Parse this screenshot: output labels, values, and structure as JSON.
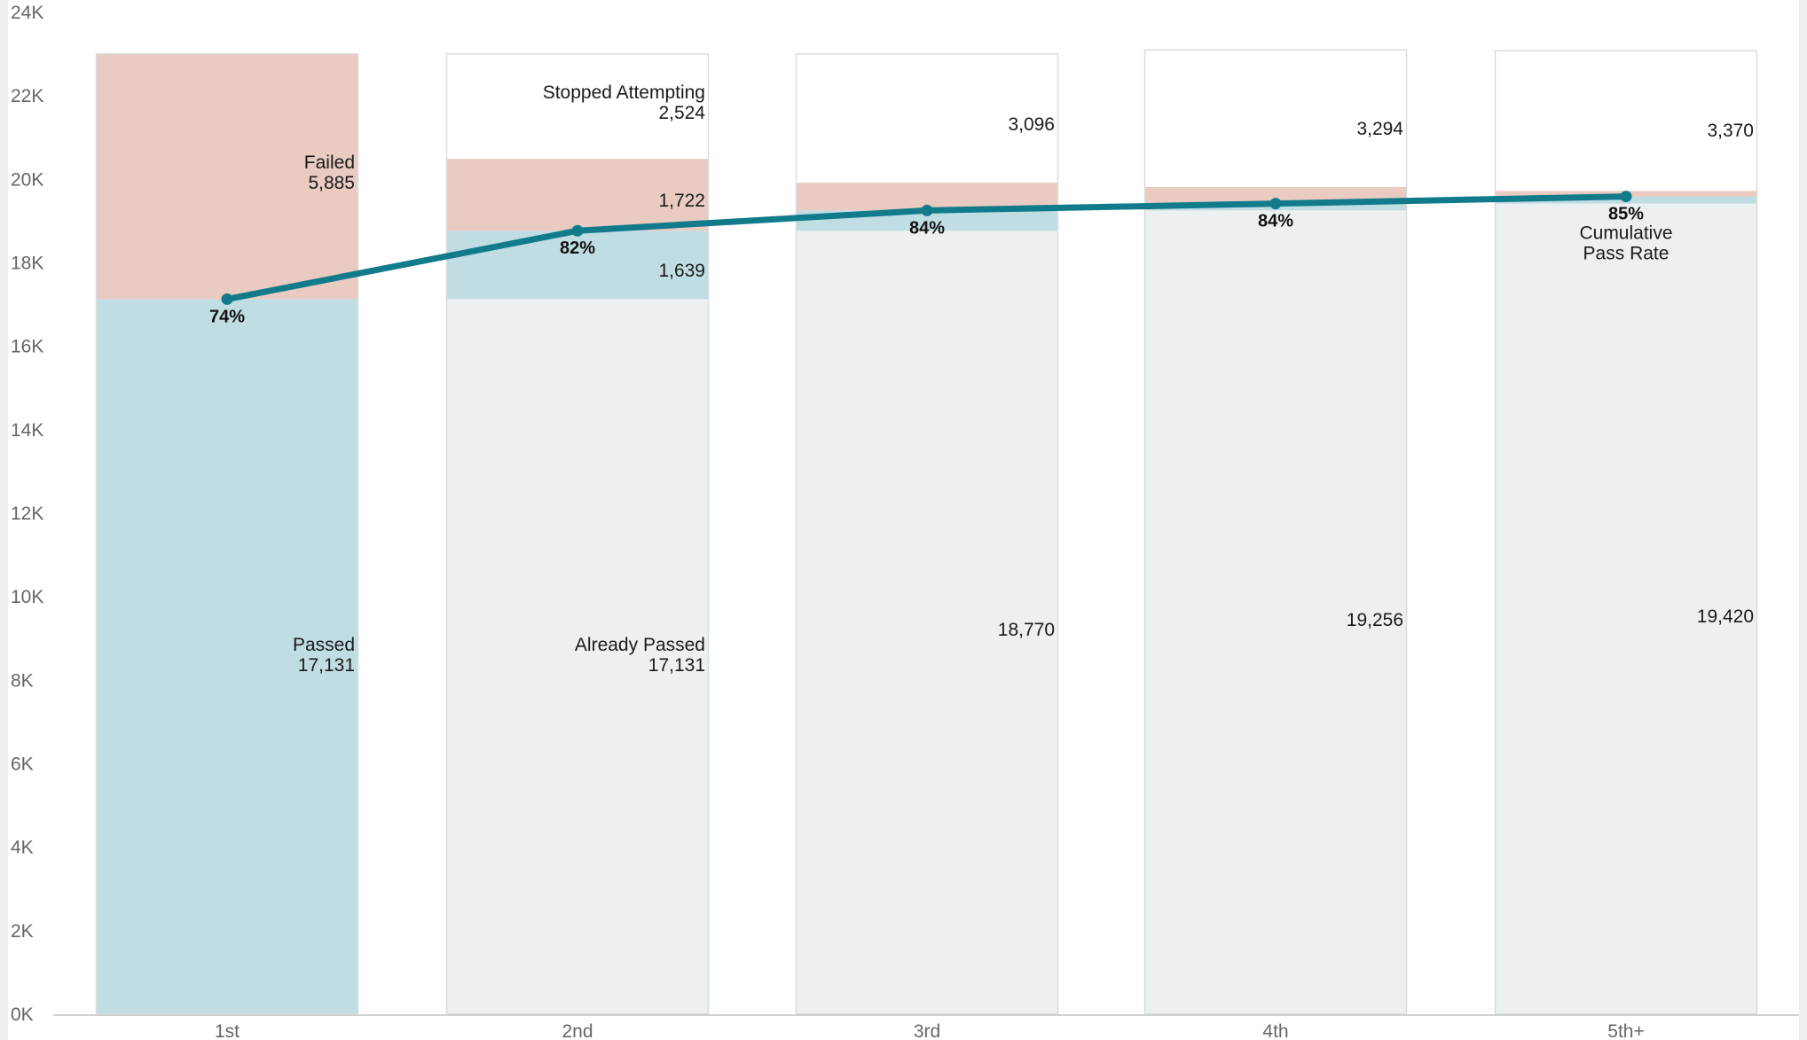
{
  "chart_data": {
    "type": "bar",
    "categories": [
      "1st",
      "2nd",
      "3rd",
      "4th",
      "5th+"
    ],
    "y_ticks": [
      "0K",
      "2K",
      "4K",
      "6K",
      "8K",
      "10K",
      "12K",
      "14K",
      "16K",
      "18K",
      "20K",
      "22K",
      "24K"
    ],
    "ylim": [
      0,
      24000
    ],
    "grid": false,
    "series": [
      {
        "name": "Already Passed",
        "values": [
          0,
          17131,
          18770,
          19256,
          19420
        ]
      },
      {
        "name": "Passed",
        "values": [
          17131,
          1639,
          486,
          164,
          171
        ]
      },
      {
        "name": "Failed",
        "values": [
          5885,
          1722,
          664,
          396,
          135
        ]
      },
      {
        "name": "Stopped Attempting",
        "values": [
          0,
          2524,
          3096,
          3294,
          3370
        ]
      }
    ],
    "line": {
      "name": "Cumulative Pass Rate",
      "values": [
        74,
        82,
        84,
        84,
        85
      ]
    },
    "labels": {
      "failed_bar1": [
        "Failed",
        "5,885"
      ],
      "passed_bar1": [
        "Passed",
        "17,131"
      ],
      "stopped_bar2": [
        "Stopped Attempting",
        "2,524"
      ],
      "failed_bar2": "1,722",
      "passed_bar2": "1,639",
      "already_bar2": [
        "Already Passed",
        "17,131"
      ],
      "stopped_others": [
        "3,096",
        "3,294",
        "3,370"
      ],
      "already_others": [
        "18,770",
        "19,256",
        "19,420"
      ],
      "pct": [
        "74%",
        "82%",
        "84%",
        "84%",
        "85%"
      ],
      "line_label": [
        "Cumulative",
        "Pass Rate"
      ]
    },
    "colors": {
      "passed": "#c0dde3",
      "already_passed": "#edf0f1",
      "failed": "#e9cbc1",
      "stopped": "#ffffff",
      "bar_border": "#d9dcdd",
      "line": "#117a8b",
      "axis": "#d0d0d0"
    }
  }
}
